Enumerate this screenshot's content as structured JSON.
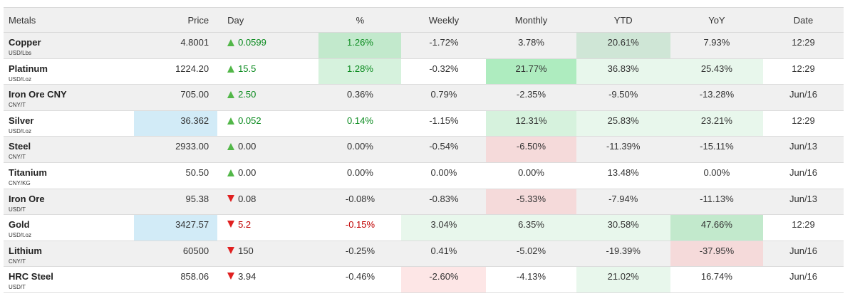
{
  "headers": {
    "name": "Metals",
    "price": "Price",
    "day": "Day",
    "pct": "%",
    "weekly": "Weekly",
    "monthly": "Monthly",
    "ytd": "YTD",
    "yoy": "YoY",
    "date": "Date"
  },
  "colors": {
    "up_green": "#0a8a1e",
    "down_red": "#c00000",
    "up_arrow": "#52b748",
    "down_arrow": "#e02020",
    "price_highlight": "#d2ebf7"
  },
  "rows": [
    {
      "name": "Copper",
      "unit": "USD/Lbs",
      "price": "4.8001",
      "day": "0.0599",
      "day_dir": "up",
      "pct": "1.26%",
      "weekly": "-1.72%",
      "monthly": "3.78%",
      "ytd": "20.61%",
      "yoy": "7.93%",
      "date": "12:29"
    },
    {
      "name": "Platinum",
      "unit": "USD/t.oz",
      "price": "1224.20",
      "day": "15.5",
      "day_dir": "up",
      "pct": "1.28%",
      "weekly": "-0.32%",
      "monthly": "21.77%",
      "ytd": "36.83%",
      "yoy": "25.43%",
      "date": "12:29"
    },
    {
      "name": "Iron Ore CNY",
      "unit": "CNY/T",
      "price": "705.00",
      "day": "2.50",
      "day_dir": "up",
      "pct": "0.36%",
      "weekly": "0.79%",
      "monthly": "-2.35%",
      "ytd": "-9.50%",
      "yoy": "-13.28%",
      "date": "Jun/16"
    },
    {
      "name": "Silver",
      "unit": "USD/t.oz",
      "price": "36.362",
      "day": "0.052",
      "day_dir": "up",
      "pct": "0.14%",
      "weekly": "-1.15%",
      "monthly": "12.31%",
      "ytd": "25.83%",
      "yoy": "23.21%",
      "date": "12:29"
    },
    {
      "name": "Steel",
      "unit": "CNY/T",
      "price": "2933.00",
      "day": "0.00",
      "day_dir": "up",
      "pct": "0.00%",
      "weekly": "-0.54%",
      "monthly": "-6.50%",
      "ytd": "-11.39%",
      "yoy": "-15.11%",
      "date": "Jun/13"
    },
    {
      "name": "Titanium",
      "unit": "CNY/KG",
      "price": "50.50",
      "day": "0.00",
      "day_dir": "up",
      "pct": "0.00%",
      "weekly": "0.00%",
      "monthly": "0.00%",
      "ytd": "13.48%",
      "yoy": "0.00%",
      "date": "Jun/16"
    },
    {
      "name": "Iron Ore",
      "unit": "USD/T",
      "price": "95.38",
      "day": "0.08",
      "day_dir": "down",
      "pct": "-0.08%",
      "weekly": "-0.83%",
      "monthly": "-5.33%",
      "ytd": "-7.94%",
      "yoy": "-11.13%",
      "date": "Jun/13"
    },
    {
      "name": "Gold",
      "unit": "USD/t.oz",
      "price": "3427.57",
      "day": "5.2",
      "day_dir": "down",
      "pct": "-0.15%",
      "weekly": "3.04%",
      "monthly": "6.35%",
      "ytd": "30.58%",
      "yoy": "47.66%",
      "date": "12:29"
    },
    {
      "name": "Lithium",
      "unit": "CNY/T",
      "price": "60500",
      "day": "150",
      "day_dir": "down",
      "pct": "-0.25%",
      "weekly": "0.41%",
      "monthly": "-5.02%",
      "ytd": "-19.39%",
      "yoy": "-37.95%",
      "date": "Jun/16"
    },
    {
      "name": "HRC Steel",
      "unit": "USD/T",
      "price": "858.06",
      "day": "3.94",
      "day_dir": "down",
      "pct": "-0.46%",
      "weekly": "-2.60%",
      "monthly": "-4.13%",
      "ytd": "21.02%",
      "yoy": "16.74%",
      "date": "Jun/16"
    }
  ]
}
